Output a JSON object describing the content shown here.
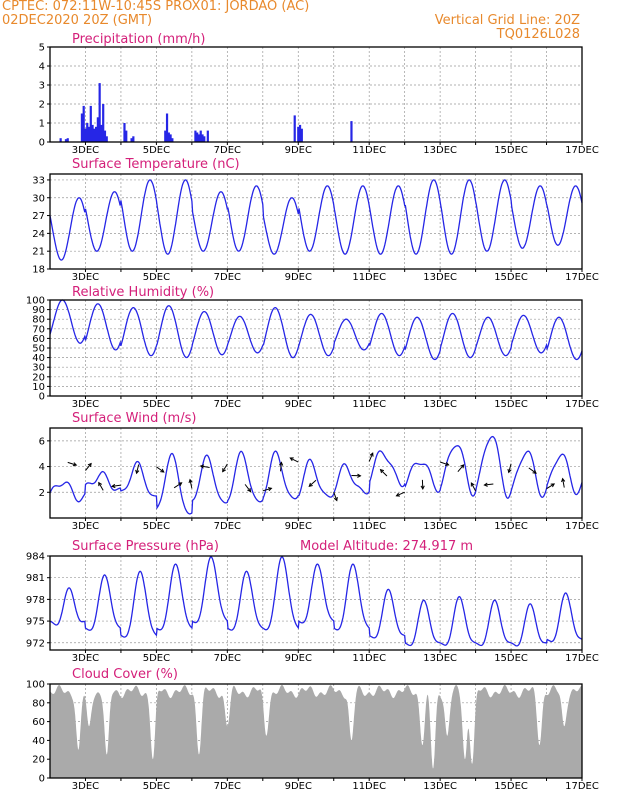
{
  "header": {
    "line1": "CPTEC:   072:11W-10:45S   PROX01: JORDAO (AC)",
    "line2": "02DEC2020 20Z (GMT)",
    "grid_note": "Vertical Grid Line: 20Z",
    "code": "TQ0126L028"
  },
  "x_tick_labels": [
    "3DEC",
    "5DEC",
    "7DEC",
    "9DEC",
    "11DEC",
    "13DEC",
    "15DEC",
    "17DEC"
  ],
  "colors": {
    "series": "#2626e6",
    "title": "#d4207a",
    "header": "#e8892c",
    "cloud": "#aaaaaa"
  },
  "chart_data": [
    {
      "type": "bar",
      "title": "Precipitation (mm/h)",
      "ylim": [
        0,
        5
      ],
      "yticks": [
        0,
        1,
        2,
        3,
        4,
        5
      ],
      "x": [
        2.3,
        2.45,
        2.5,
        2.9,
        2.95,
        3.0,
        3.05,
        3.1,
        3.15,
        3.2,
        3.25,
        3.3,
        3.35,
        3.4,
        3.45,
        3.5,
        3.55,
        3.6,
        4.1,
        4.15,
        4.3,
        4.35,
        5.25,
        5.3,
        5.35,
        5.4,
        5.45,
        6.1,
        6.15,
        6.2,
        6.25,
        6.3,
        6.35,
        6.45,
        8.9,
        9.0,
        9.05,
        9.1,
        10.5
      ],
      "values": [
        0.2,
        0.15,
        0.2,
        1.5,
        1.9,
        0.7,
        1.0,
        0.8,
        1.9,
        0.9,
        0.7,
        0.8,
        1.3,
        3.1,
        0.9,
        2.0,
        0.6,
        0.3,
        1.0,
        0.6,
        0.2,
        0.3,
        0.6,
        1.5,
        0.5,
        0.4,
        0.2,
        0.6,
        0.5,
        0.4,
        0.6,
        0.4,
        0.3,
        0.6,
        1.4,
        0.8,
        0.9,
        0.7,
        1.1
      ]
    },
    {
      "type": "line",
      "title": "Surface Temperature (nC)",
      "ylim": [
        18,
        34
      ],
      "yticks": [
        18,
        21,
        24,
        27,
        30,
        33
      ],
      "min": [
        19.5,
        21,
        21,
        20.5,
        21,
        21,
        20.5,
        21,
        20.5,
        20.5,
        20.5,
        20.5,
        21,
        21.5,
        22
      ],
      "max": [
        30,
        31,
        33,
        33,
        31,
        32,
        30,
        32,
        32,
        32,
        33,
        33,
        33,
        32,
        32
      ]
    },
    {
      "type": "line",
      "title": "Relative Humidity (%)",
      "ylim": [
        0,
        100
      ],
      "yticks": [
        0,
        10,
        20,
        30,
        40,
        50,
        60,
        70,
        80,
        90,
        100
      ],
      "max": [
        100,
        96,
        92,
        94,
        88,
        83,
        92,
        85,
        80,
        86,
        82,
        86,
        82,
        84,
        82
      ],
      "min": [
        55,
        48,
        42,
        40,
        43,
        45,
        40,
        42,
        48,
        42,
        38,
        40,
        42,
        45,
        38
      ]
    },
    {
      "type": "line",
      "title": "Surface Wind (m/s)",
      "ylim": [
        0,
        7
      ],
      "yticks": [
        2,
        4,
        6
      ],
      "daily_max": [
        3.2,
        3.8,
        4.3,
        4.6,
        4.2,
        4.4,
        4.5,
        4.1,
        4.1,
        5.6,
        4.9,
        6.0,
        6.3,
        4.8,
        4.5
      ],
      "daily_min": [
        1.0,
        1.7,
        1.4,
        0.3,
        1.4,
        1.5,
        1.6,
        1.5,
        1.6,
        2.2,
        2.0,
        2.0,
        2.1,
        2.3,
        2.5
      ]
    },
    {
      "type": "line",
      "title": "Surface Pressure (hPa)",
      "annotation": "Model Altitude: 274.917 m",
      "ylim": [
        971,
        984
      ],
      "yticks": [
        972,
        975,
        978,
        981,
        984
      ],
      "max": [
        978.7,
        980.5,
        981,
        982,
        983,
        981,
        983,
        982,
        982,
        978.5,
        977,
        977.5,
        977,
        976.5,
        978
      ],
      "min": [
        974,
        973,
        972,
        973,
        974,
        973,
        973,
        974,
        973,
        972,
        971,
        971,
        971,
        971,
        971.5
      ]
    },
    {
      "type": "area",
      "title": "Cloud Cover (%)",
      "ylim": [
        0,
        100
      ],
      "yticks": [
        0,
        20,
        40,
        60,
        80,
        100
      ],
      "dips": [
        [
          2.8,
          30
        ],
        [
          3.1,
          55
        ],
        [
          3.6,
          25
        ],
        [
          4.9,
          20
        ],
        [
          6.2,
          25
        ],
        [
          7.0,
          55
        ],
        [
          8.1,
          45
        ],
        [
          10.5,
          40
        ],
        [
          12.5,
          35
        ],
        [
          12.8,
          10
        ],
        [
          13.2,
          45
        ],
        [
          13.7,
          20
        ],
        [
          13.9,
          15
        ],
        [
          15.8,
          35
        ],
        [
          16.5,
          55
        ]
      ]
    }
  ]
}
